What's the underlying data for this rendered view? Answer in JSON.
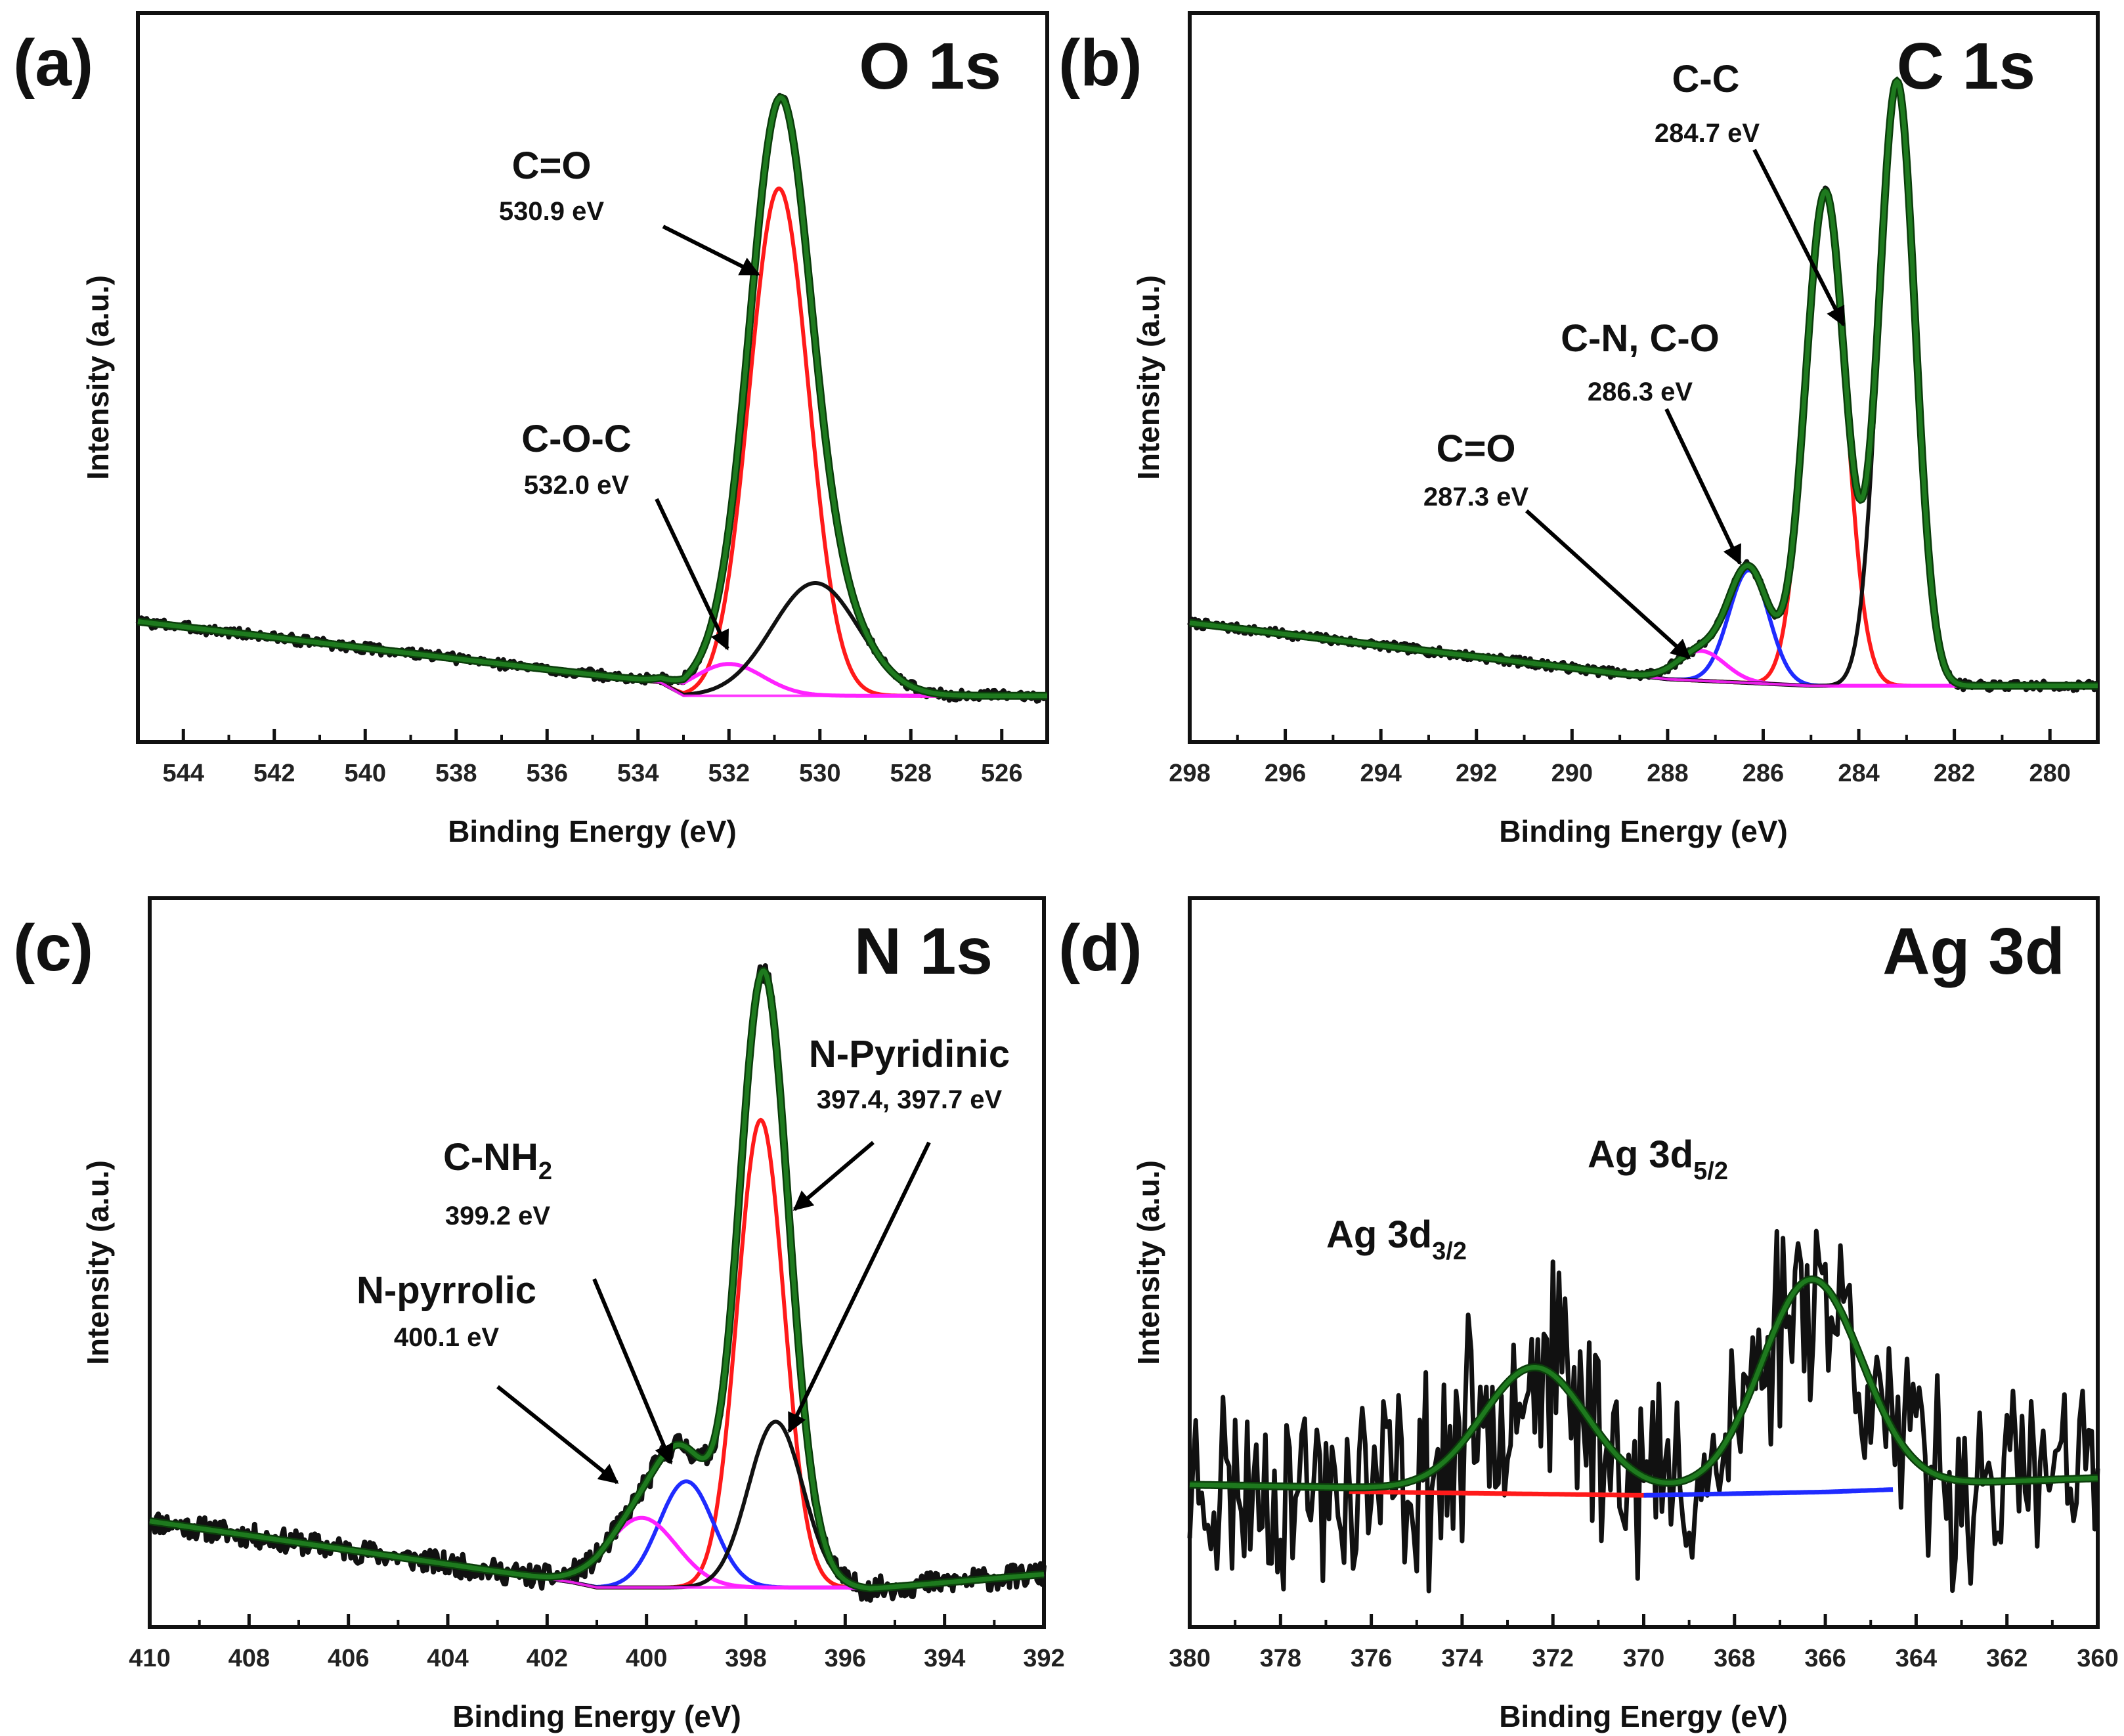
{
  "colors": {
    "raw": "#111111",
    "envelope": "#1e7a1e",
    "envelope_edge": "#0b3d0b",
    "red": "#ff1a1a",
    "blue": "#1f2bff",
    "magenta": "#ff22ff",
    "black_fit": "#111111",
    "arrow": "#000000"
  },
  "chart_data": [
    {
      "id": "a",
      "type": "line",
      "panel_label": "(a)",
      "title": "O 1s",
      "xlabel": "Binding Energy (eV)",
      "ylabel": "Intensity (a.u.)",
      "xlim": [
        545,
        525
      ],
      "ylim": [
        0,
        1
      ],
      "xticks": [
        544,
        542,
        540,
        538,
        536,
        534,
        532,
        530,
        528,
        526
      ],
      "xtick_labels": [
        "544",
        "542",
        "540",
        "538",
        "536",
        "534",
        "532",
        "530",
        "528",
        "526"
      ],
      "background": {
        "x": [
          545,
          533.5,
          533,
          529,
          525
        ],
        "y": [
          0.142,
          0.05,
          0.03,
          0.03,
          0.03
        ]
      },
      "peaks": [
        {
          "name": "C=O",
          "center": 530.9,
          "height": 0.765,
          "sigma": 0.65,
          "color": "red"
        },
        {
          "name": "C-O-C",
          "center": 532.0,
          "height": 0.048,
          "sigma": 0.75,
          "color": "magenta"
        },
        {
          "name": "",
          "center": 530.1,
          "height": 0.17,
          "sigma": 0.95,
          "color": "black_fit"
        }
      ],
      "envelope_extra_peaks": [],
      "noise": {
        "amplitude": 0.008,
        "seed": 3
      },
      "annotations": [
        {
          "name": "C=O",
          "energy": "530.9 eV",
          "data_x": 530.9,
          "data_y": 0.79
        },
        {
          "name": "C-O-C",
          "energy": "532.0 eV",
          "data_x": 532.0,
          "data_y": 0.085
        }
      ]
    },
    {
      "id": "b",
      "type": "line",
      "panel_label": "(b)",
      "title": "C 1s",
      "xlabel": "Binding Energy (eV)",
      "ylabel": "Intensity (a.u.)",
      "xlim": [
        298,
        279
      ],
      "ylim": [
        0,
        1
      ],
      "xticks": [
        298,
        296,
        294,
        292,
        290,
        288,
        286,
        284,
        282,
        280
      ],
      "xtick_labels": [
        "298",
        "296",
        "294",
        "292",
        "290",
        "288",
        "286",
        "284",
        "282",
        "280"
      ],
      "background": {
        "x": [
          298,
          288,
          285,
          279
        ],
        "y": [
          0.14,
          0.055,
          0.045,
          0.045
        ]
      },
      "peaks": [
        {
          "name": "C-C",
          "center": 284.7,
          "height": 0.745,
          "sigma": 0.42,
          "color": "red"
        },
        {
          "name": "C-N, C-O",
          "center": 286.3,
          "height": 0.17,
          "sigma": 0.42,
          "color": "blue"
        },
        {
          "name": "C=O",
          "center": 287.3,
          "height": 0.045,
          "sigma": 0.5,
          "color": "magenta"
        },
        {
          "name": "",
          "center": 283.2,
          "height": 0.91,
          "sigma": 0.38,
          "color": "black_fit"
        }
      ],
      "envelope_extra_peaks": [],
      "noise": {
        "amplitude": 0.007,
        "seed": 7
      },
      "annotations": [
        {
          "name": "C-C",
          "energy": "284.7 eV",
          "data_x": 284.7,
          "data_y": 0.55
        },
        {
          "name": "C-N, C-O",
          "energy": "286.3 eV",
          "data_x": 286.3,
          "data_y": 0.23
        },
        {
          "name": "C=O",
          "energy": "287.3 eV",
          "data_x": 287.3,
          "data_y": 0.105
        }
      ]
    },
    {
      "id": "c",
      "type": "line",
      "panel_label": "(c)",
      "title": "N 1s",
      "xlabel": "Binding Energy (eV)",
      "ylabel": "Intensity (a.u.)",
      "xlim": [
        410,
        392
      ],
      "ylim": [
        0,
        1
      ],
      "xticks": [
        410,
        408,
        406,
        404,
        402,
        400,
        398,
        396,
        394,
        392
      ],
      "xtick_labels": [
        "410",
        "408",
        "406",
        "404",
        "402",
        "400",
        "398",
        "396",
        "394",
        "392"
      ],
      "background": {
        "x": [
          410,
          401.5,
          401,
          396,
          395.5,
          392
        ],
        "y": [
          0.12,
          0.028,
          0.02,
          0.02,
          0.018,
          0.04
        ]
      },
      "peaks": [
        {
          "name": "N-Pyridinic",
          "center": 397.7,
          "height": 0.705,
          "sigma": 0.47,
          "color": "red"
        },
        {
          "name": "C-NH2",
          "center": 399.2,
          "height": 0.16,
          "sigma": 0.55,
          "color": "blue"
        },
        {
          "name": "N-pyrrolic",
          "center": 400.1,
          "height": 0.105,
          "sigma": 0.7,
          "color": "magenta"
        },
        {
          "name": "",
          "center": 397.4,
          "height": 0.25,
          "sigma": 0.55,
          "color": "black_fit"
        }
      ],
      "envelope_extra_peaks": [],
      "noise": {
        "amplitude": 0.018,
        "seed": 11
      },
      "annotations": [
        {
          "name": "N-Pyridinic",
          "energy": "397.4, 397.7 eV",
          "data_x": 397.2,
          "data_y": 0.6
        },
        {
          "name": "C-NH",
          "energy": "399.2 eV",
          "data_x": 399.2,
          "data_y": 0.17
        },
        {
          "name": "N-pyrrolic",
          "energy": "400.1 eV",
          "data_x": 400.4,
          "data_y": 0.1
        },
        {
          "name": "",
          "energy": "",
          "data_x": 397.4,
          "data_y": 0.25
        }
      ],
      "subscript": "2"
    },
    {
      "id": "d",
      "type": "line",
      "panel_label": "(d)",
      "title": "Ag 3d",
      "xlabel": "Binding Energy (eV)",
      "ylabel": "Intensity (a.u.)",
      "xlim": [
        380,
        360
      ],
      "ylim": [
        0,
        1
      ],
      "xticks": [
        380,
        378,
        376,
        374,
        372,
        370,
        368,
        366,
        364,
        362,
        360
      ],
      "xtick_labels": [
        "380",
        "378",
        "376",
        "374",
        "372",
        "370",
        "368",
        "366",
        "364",
        "362",
        "360"
      ],
      "background": {
        "x": [
          380,
          376,
          370,
          366,
          360
        ],
        "y": [
          0.175,
          0.17,
          0.165,
          0.17,
          0.185
        ]
      },
      "peaks": [],
      "envelope_extra_peaks": [
        {
          "name": "Ag 3d3/2",
          "center": 372.4,
          "height": 0.185,
          "sigma": 1.15
        },
        {
          "name": "Ag 3d5/2",
          "center": 366.3,
          "height": 0.315,
          "sigma": 1.1
        }
      ],
      "component_bases": [
        {
          "color": "red",
          "from": 376.5,
          "to": 369.5
        },
        {
          "color": "blue",
          "from": 370,
          "to": 364.5
        }
      ],
      "noise": {
        "amplitude": 0.12,
        "seed": 23
      },
      "annotations": [
        {
          "name": "Ag 3d",
          "sub": "3/2",
          "data_x": 373.9,
          "data_y": 0.52
        },
        {
          "name": "Ag 3d",
          "sub": "5/2",
          "data_x": 366.5,
          "data_y": 0.62
        }
      ]
    }
  ]
}
